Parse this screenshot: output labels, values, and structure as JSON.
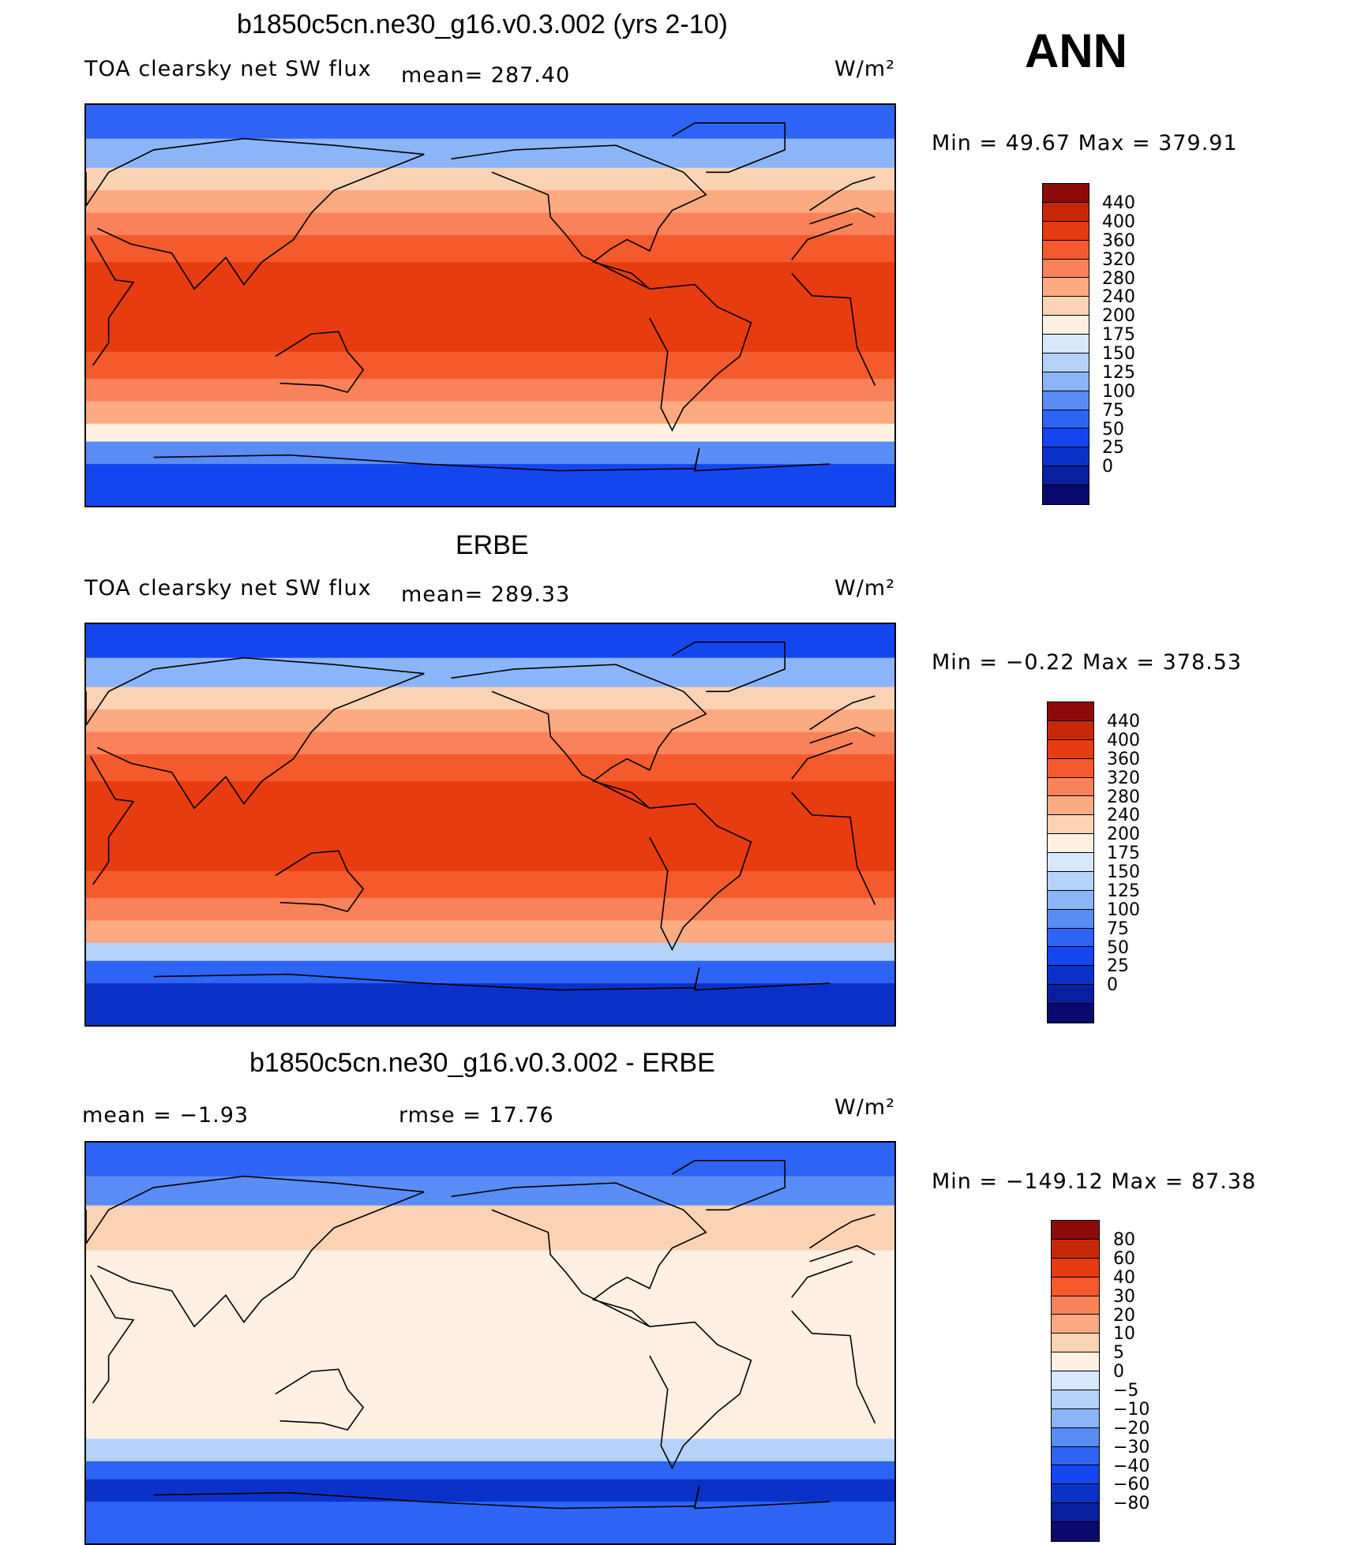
{
  "season": "ANN",
  "units": "W/m²",
  "colors": {
    "abs_scale": [
      "#0a0a6e",
      "#0a1ea0",
      "#0a32c8",
      "#1446f0",
      "#2d64f5",
      "#5a8cf5",
      "#8cb4f8",
      "#b4d2fa",
      "#d7e8fc",
      "#fff0e1",
      "#fcd2b4",
      "#fcaa82",
      "#fa825a",
      "#f55a2d",
      "#e63c0f",
      "#c82808",
      "#8c0a0a"
    ],
    "diff_scale": [
      "#0a0a6e",
      "#0a1ea0",
      "#0a32c8",
      "#1446f0",
      "#2d64f5",
      "#5a8cf5",
      "#8cb4f8",
      "#b4d2fa",
      "#d7e8fc",
      "#fff0e1",
      "#fcd2b4",
      "#fcaa82",
      "#fa825a",
      "#f55a2d",
      "#e63c0f",
      "#c82808",
      "#8c0a0a"
    ]
  },
  "panels": [
    {
      "title": "b1850c5cn.ne30_g16.v0.3.002 (yrs 2-10)",
      "variable": "TOA clearsky net SW flux",
      "mean_label": "mean=  287.40",
      "minmax": "Min  =    49.67  Max  =  379.91"
    },
    {
      "title": "ERBE",
      "variable": "TOA clearsky net SW flux",
      "mean_label": "mean=  289.33",
      "minmax": "Min  =    −0.22  Max  =  378.53"
    },
    {
      "title": "b1850c5cn.ne30_g16.v0.3.002 - ERBE",
      "mean_text": "mean  =    −1.93",
      "rmse_text": "rmse  =    17.76",
      "minmax": "Min  =  −149.12  Max  =    87.38"
    }
  ],
  "chart_data": [
    {
      "type": "heatmap",
      "title": "b1850c5cn.ne30_g16.v0.3.002 (yrs 2-10)",
      "variable": "TOA clearsky net SW flux",
      "units": "W/m²",
      "mean": 287.4,
      "min": 49.67,
      "max": 379.91,
      "contour_levels": [
        0,
        25,
        50,
        75,
        100,
        125,
        150,
        175,
        200,
        240,
        280,
        320,
        360,
        400,
        440
      ],
      "colorbar_labels": [
        "440",
        "400",
        "360",
        "320",
        "280",
        "240",
        "200",
        "175",
        "150",
        "125",
        "100",
        "75",
        "50",
        "25",
        "0"
      ],
      "zonal_profile": {
        "lat": [
          90,
          75,
          62,
          52,
          42,
          32,
          20,
          10,
          0,
          -10,
          -20,
          -32,
          -42,
          -52,
          -60,
          -70,
          -90
        ],
        "value": [
          40,
          110,
          180,
          240,
          280,
          320,
          355,
          370,
          375,
          370,
          355,
          320,
          280,
          200,
          150,
          60,
          40
        ]
      }
    },
    {
      "type": "heatmap",
      "title": "ERBE",
      "variable": "TOA clearsky net SW flux",
      "units": "W/m²",
      "mean": 289.33,
      "min": -0.22,
      "max": 378.53,
      "contour_levels": [
        0,
        25,
        50,
        75,
        100,
        125,
        150,
        175,
        200,
        240,
        280,
        320,
        360,
        400,
        440
      ],
      "colorbar_labels": [
        "440",
        "400",
        "360",
        "320",
        "280",
        "240",
        "200",
        "175",
        "150",
        "125",
        "100",
        "75",
        "50",
        "25",
        "0"
      ],
      "zonal_profile": {
        "lat": [
          90,
          75,
          62,
          52,
          42,
          32,
          20,
          10,
          0,
          -10,
          -20,
          -32,
          -42,
          -52,
          -60,
          -70,
          -90
        ],
        "value": [
          40,
          100,
          170,
          235,
          280,
          320,
          355,
          370,
          375,
          370,
          355,
          320,
          280,
          200,
          140,
          40,
          30
        ]
      }
    },
    {
      "type": "heatmap",
      "title": "b1850c5cn.ne30_g16.v0.3.002 - ERBE",
      "units": "W/m²",
      "mean": -1.93,
      "rmse": 17.76,
      "min": -149.12,
      "max": 87.38,
      "contour_levels": [
        -80,
        -60,
        -40,
        -30,
        -20,
        -10,
        -5,
        0,
        5,
        10,
        20,
        30,
        40,
        60,
        80
      ],
      "colorbar_labels": [
        "80",
        "60",
        "40",
        "30",
        "20",
        "10",
        "5",
        "0",
        "−5",
        "−10",
        "−20",
        "−30",
        "−40",
        "−60",
        "−80"
      ],
      "zonal_profile": {
        "lat": [
          90,
          75,
          62,
          52,
          42,
          32,
          20,
          10,
          0,
          -10,
          -20,
          -32,
          -42,
          -52,
          -60,
          -70,
          -90
        ],
        "value": [
          -30,
          -30,
          5,
          10,
          3,
          3,
          2,
          2,
          2,
          2,
          3,
          -3,
          3,
          -5,
          -40,
          -60,
          5
        ]
      }
    }
  ]
}
